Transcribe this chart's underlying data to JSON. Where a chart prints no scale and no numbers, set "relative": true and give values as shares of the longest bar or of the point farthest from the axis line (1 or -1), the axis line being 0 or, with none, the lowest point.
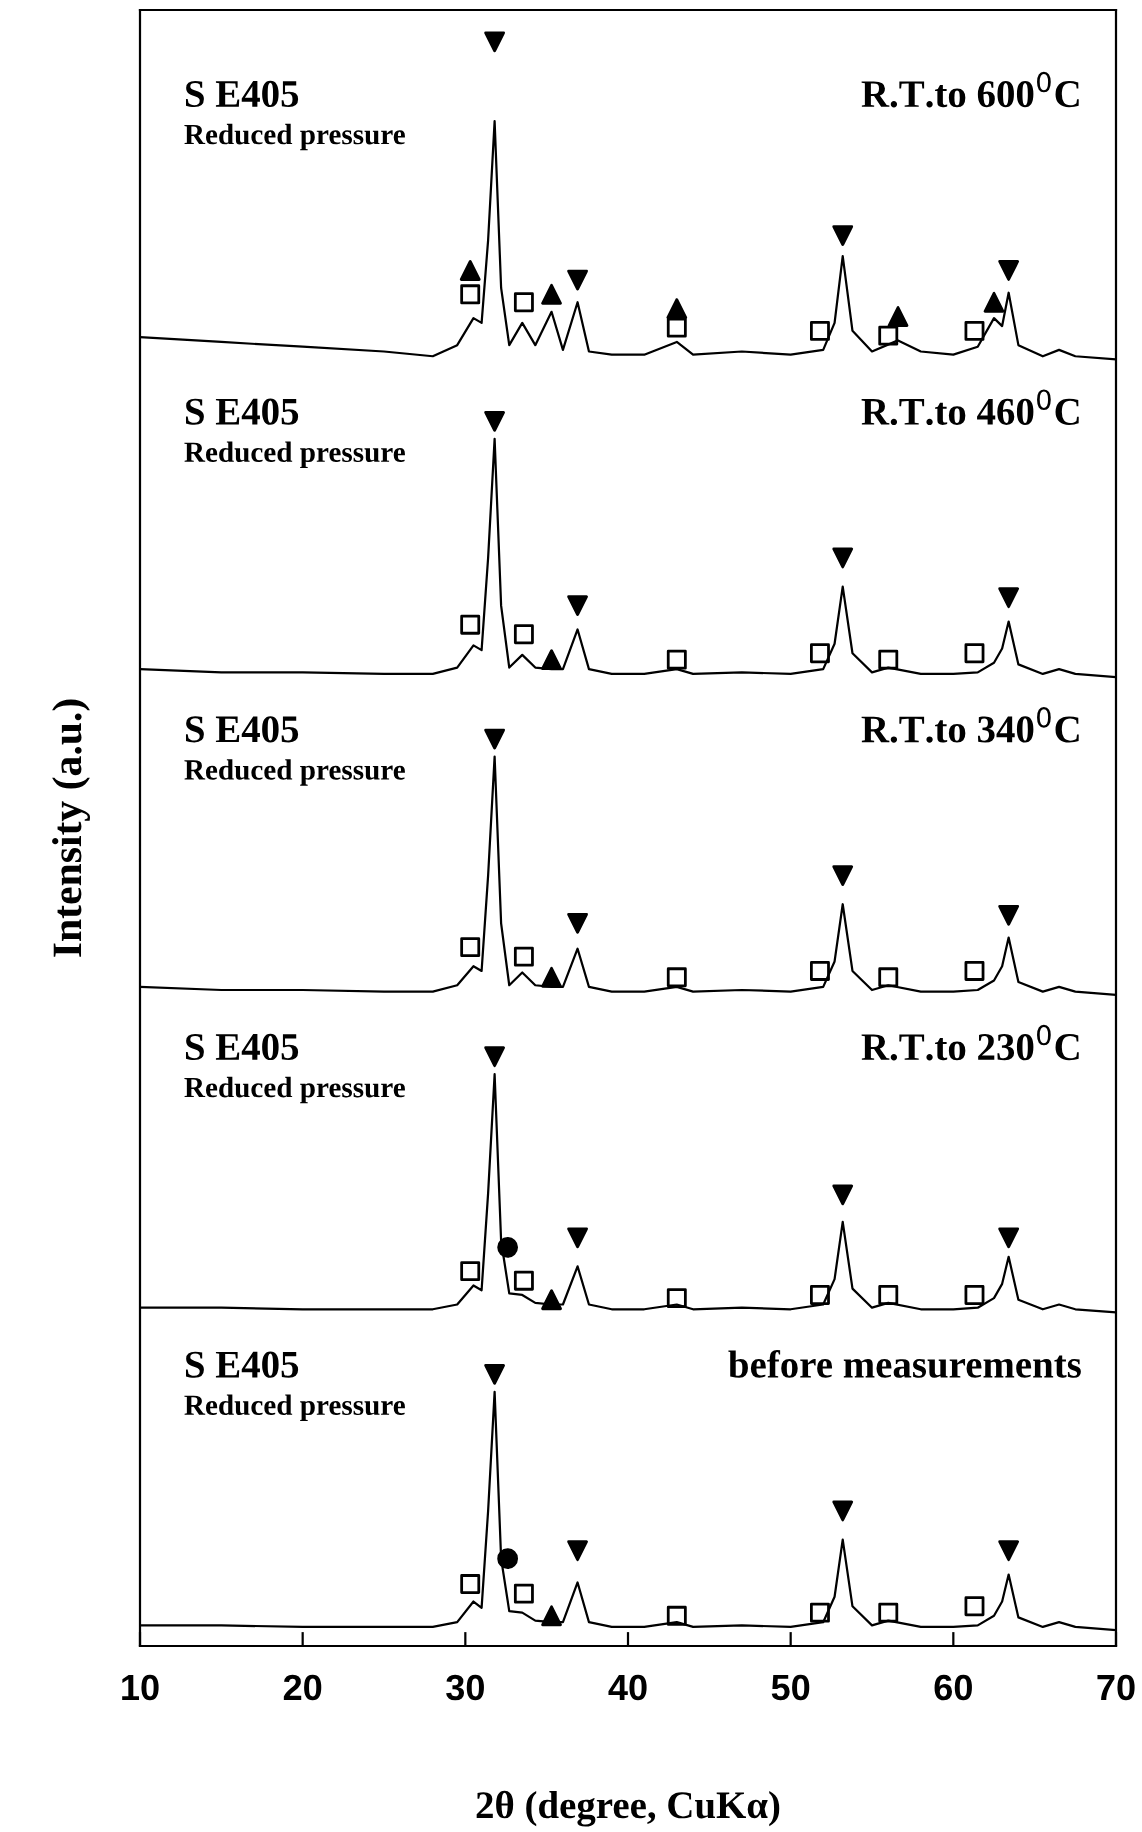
{
  "chart_data": {
    "type": "line",
    "relative": true,
    "xlabel": "2θ (degree, CuKα)",
    "ylabel": "Intensity (a.u.)",
    "xlim": [
      10,
      70
    ],
    "xticks": [
      10,
      20,
      30,
      40,
      50,
      60,
      70
    ],
    "tick_labels": "x",
    "grid": false,
    "annotations": [
      "S E405",
      "Reduced pressure",
      "R.T.to 600$^{0}$C",
      "S E405",
      "Reduced pressure",
      "R.T.to 460$^{0}$C",
      "S E405",
      "Reduced pressure",
      "R.T.to 340$^{0}$C",
      "S E405",
      "Reduced pressure",
      "R.T.to 230$^{0}$C",
      "S E405",
      "Reduced pressure",
      "before measurements"
    ],
    "series": [
      {
        "color": "#000000",
        "x": [
          10,
          15,
          20,
          25,
          28,
          29.5,
          30.5,
          31,
          31.4,
          31.8,
          32.2,
          32.7,
          33.5,
          34.3,
          35.3,
          36,
          36.9,
          37.6,
          39,
          41,
          43,
          44,
          47,
          50,
          52,
          52.7,
          53.2,
          53.8,
          55,
          56.6,
          58,
          60,
          61.5,
          62.5,
          63,
          63.4,
          64,
          65.5,
          66.5,
          67.5,
          70
        ],
        "values": [
          0.814,
          0.811,
          0.808,
          0.805,
          0.802,
          0.809,
          0.826,
          0.823,
          0.875,
          0.95,
          0.845,
          0.809,
          0.823,
          0.809,
          0.83,
          0.806,
          0.836,
          0.805,
          0.803,
          0.803,
          0.811,
          0.803,
          0.805,
          0.803,
          0.806,
          0.823,
          0.865,
          0.818,
          0.805,
          0.812,
          0.805,
          0.803,
          0.808,
          0.826,
          0.821,
          0.842,
          0.809,
          0.802,
          0.806,
          0.802,
          0.8
        ]
      },
      {
        "type": "scatter",
        "marker": "triangle_down",
        "color": "#000000",
        "x": [
          31.8,
          36.9,
          53.2,
          63.4
        ],
        "values": [
          1,
          0.85,
          0.878,
          0.856
        ]
      },
      {
        "type": "scatter",
        "marker": "square",
        "color": "#000000",
        "x": [
          30.3,
          33.6,
          43,
          51.8,
          56,
          61.3
        ],
        "values": [
          0.841,
          0.836,
          0.82,
          0.818,
          0.815,
          0.818
        ]
      },
      {
        "type": "scatter",
        "marker": "triangle",
        "color": "#000000",
        "x": [
          30.3,
          35.3,
          43,
          56.6,
          62.5
        ],
        "values": [
          0.856,
          0.841,
          0.832,
          0.827,
          0.836
        ]
      },
      {
        "color": "#000000",
        "x": [
          10,
          15,
          20,
          25,
          28,
          29.5,
          30.5,
          31,
          31.4,
          31.8,
          32.2,
          32.7,
          33.5,
          34.3,
          35.3,
          36,
          36.9,
          37.6,
          39,
          41,
          43,
          44,
          47,
          50,
          52,
          52.7,
          53.2,
          53.8,
          55,
          56,
          58,
          60,
          61.5,
          62.5,
          63,
          63.4,
          64,
          65.5,
          66.5,
          67.5,
          70
        ],
        "values": [
          0.605,
          0.603,
          0.603,
          0.602,
          0.602,
          0.606,
          0.62,
          0.617,
          0.675,
          0.75,
          0.645,
          0.606,
          0.614,
          0.606,
          0.605,
          0.605,
          0.63,
          0.605,
          0.602,
          0.602,
          0.605,
          0.602,
          0.603,
          0.602,
          0.605,
          0.621,
          0.657,
          0.615,
          0.603,
          0.606,
          0.602,
          0.602,
          0.603,
          0.609,
          0.618,
          0.635,
          0.608,
          0.602,
          0.605,
          0.602,
          0.6
        ]
      },
      {
        "type": "scatter",
        "marker": "triangle_down",
        "color": "#000000",
        "x": [
          31.8,
          36.9,
          53.2,
          63.4
        ],
        "values": [
          0.761,
          0.645,
          0.675,
          0.65
        ]
      },
      {
        "type": "scatter",
        "marker": "square",
        "color": "#000000",
        "x": [
          30.3,
          33.6,
          43,
          51.8,
          56,
          61.3
        ],
        "values": [
          0.633,
          0.627,
          0.611,
          0.615,
          0.611,
          0.615
        ]
      },
      {
        "type": "scatter",
        "marker": "triangle",
        "color": "#000000",
        "x": [
          35.3
        ],
        "values": [
          0.611
        ]
      },
      {
        "color": "#000000",
        "x": [
          10,
          15,
          20,
          25,
          28,
          29.5,
          30.5,
          31,
          31.4,
          31.8,
          32.2,
          32.7,
          33.5,
          34.3,
          35.3,
          36,
          36.9,
          37.6,
          39,
          41,
          43,
          44,
          47,
          50,
          52,
          52.7,
          53.2,
          53.8,
          55,
          56,
          58,
          60,
          61.5,
          62.5,
          63,
          63.4,
          64,
          65.5,
          66.5,
          67.5,
          70
        ],
        "values": [
          0.405,
          0.403,
          0.403,
          0.402,
          0.402,
          0.406,
          0.418,
          0.415,
          0.475,
          0.55,
          0.445,
          0.406,
          0.414,
          0.406,
          0.405,
          0.405,
          0.429,
          0.405,
          0.402,
          0.402,
          0.405,
          0.402,
          0.403,
          0.402,
          0.405,
          0.421,
          0.457,
          0.415,
          0.403,
          0.406,
          0.402,
          0.402,
          0.403,
          0.409,
          0.418,
          0.436,
          0.408,
          0.402,
          0.405,
          0.402,
          0.4
        ]
      },
      {
        "type": "scatter",
        "marker": "triangle_down",
        "color": "#000000",
        "x": [
          31.8,
          36.9,
          53.2,
          63.4
        ],
        "values": [
          0.561,
          0.445,
          0.475,
          0.45
        ]
      },
      {
        "type": "scatter",
        "marker": "square",
        "color": "#000000",
        "x": [
          30.3,
          33.6,
          43,
          51.8,
          56,
          61.3
        ],
        "values": [
          0.43,
          0.424,
          0.411,
          0.415,
          0.411,
          0.415
        ]
      },
      {
        "type": "scatter",
        "marker": "triangle",
        "color": "#000000",
        "x": [
          35.3
        ],
        "values": [
          0.411
        ]
      },
      {
        "color": "#000000",
        "x": [
          10,
          15,
          20,
          25,
          28,
          29.5,
          30.5,
          31,
          31.4,
          31.8,
          32.2,
          32.7,
          33.5,
          34.3,
          35.3,
          36,
          36.9,
          37.6,
          39,
          41,
          43,
          44,
          47,
          50,
          52,
          52.7,
          53.2,
          53.8,
          55,
          56,
          58,
          60,
          61.5,
          62.5,
          63,
          63.4,
          64,
          65.5,
          66.5,
          67.5,
          70
        ],
        "values": [
          0.203,
          0.203,
          0.202,
          0.202,
          0.202,
          0.205,
          0.217,
          0.214,
          0.275,
          0.35,
          0.245,
          0.212,
          0.211,
          0.206,
          0.205,
          0.205,
          0.229,
          0.205,
          0.202,
          0.202,
          0.205,
          0.202,
          0.203,
          0.202,
          0.205,
          0.221,
          0.257,
          0.215,
          0.203,
          0.206,
          0.202,
          0.202,
          0.203,
          0.209,
          0.218,
          0.235,
          0.208,
          0.202,
          0.205,
          0.202,
          0.2
        ]
      },
      {
        "type": "scatter",
        "marker": "triangle_down",
        "color": "#000000",
        "x": [
          31.8,
          36.9,
          53.2,
          63.4
        ],
        "values": [
          0.361,
          0.247,
          0.274,
          0.247
        ]
      },
      {
        "type": "scatter",
        "marker": "square",
        "color": "#000000",
        "x": [
          30.3,
          33.6,
          43,
          51.8,
          56,
          61.3
        ],
        "values": [
          0.226,
          0.22,
          0.209,
          0.211,
          0.211,
          0.211
        ]
      },
      {
        "type": "scatter",
        "marker": "triangle",
        "color": "#000000",
        "x": [
          35.3
        ],
        "values": [
          0.208
        ]
      },
      {
        "type": "scatter",
        "marker": "circle",
        "color": "#000000",
        "x": [
          32.6
        ],
        "values": [
          0.241
        ]
      },
      {
        "color": "#000000",
        "x": [
          10,
          15,
          20,
          25,
          28,
          29.5,
          30.5,
          31,
          31.4,
          31.8,
          32.2,
          32.7,
          33.5,
          34.3,
          35.3,
          36,
          36.9,
          37.6,
          39,
          41,
          43,
          44,
          47,
          50,
          52,
          52.7,
          53.2,
          53.8,
          55,
          56,
          58,
          60,
          61.5,
          62.5,
          63,
          63.4,
          64,
          65.5,
          66.5,
          67.5,
          70
        ],
        "values": [
          0.003,
          0.003,
          0.002,
          0.002,
          0.002,
          0.005,
          0.018,
          0.014,
          0.075,
          0.15,
          0.045,
          0.012,
          0.011,
          0.006,
          0.005,
          0.005,
          0.03,
          0.005,
          0.002,
          0.002,
          0.005,
          0.002,
          0.003,
          0.002,
          0.005,
          0.021,
          0.057,
          0.015,
          0.003,
          0.006,
          0.002,
          0.002,
          0.003,
          0.009,
          0.018,
          0.035,
          0.008,
          0.002,
          0.005,
          0.002,
          0
        ]
      },
      {
        "type": "scatter",
        "marker": "triangle_down",
        "color": "#000000",
        "x": [
          31.8,
          36.9,
          53.2,
          63.4
        ],
        "values": [
          0.161,
          0.05,
          0.075,
          0.05
        ]
      },
      {
        "type": "scatter",
        "marker": "square",
        "color": "#000000",
        "x": [
          30.3,
          33.6,
          43,
          51.8,
          56,
          61.3
        ],
        "values": [
          0.029,
          0.023,
          0.009,
          0.011,
          0.011,
          0.015
        ]
      },
      {
        "type": "scatter",
        "marker": "triangle",
        "color": "#000000",
        "x": [
          35.3
        ],
        "values": [
          0.009
        ]
      },
      {
        "type": "scatter",
        "marker": "circle",
        "color": "#000000",
        "x": [
          32.6
        ],
        "values": [
          0.045
        ]
      }
    ]
  }
}
